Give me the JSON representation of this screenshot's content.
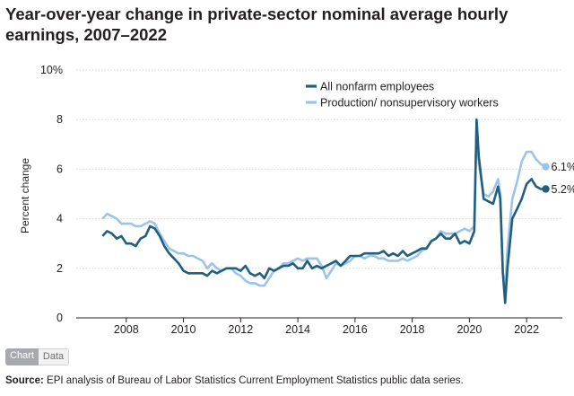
{
  "title": "Year-over-year change in private-sector nominal average hourly earnings, 2007–2022",
  "toggle": {
    "chart_label": "Chart",
    "data_label": "Data"
  },
  "source": {
    "label": "Source:",
    "text": "EPI analysis of Bureau of Labor Statistics Current Employment Statistics public data series."
  },
  "colors": {
    "series_all": "#1f5f7f",
    "series_prod": "#9dc3e6",
    "grid": "#d6d6d6",
    "text": "#231f20"
  },
  "chart_data": {
    "type": "line",
    "title": "Year-over-year change in private-sector nominal average hourly earnings, 2007–2022",
    "xlabel": "",
    "ylabel": "Percent change",
    "xlim": [
      2006.25,
      2023.25
    ],
    "ylim": [
      0,
      10
    ],
    "xticks": [
      2008,
      2010,
      2012,
      2014,
      2016,
      2018,
      2020,
      2022
    ],
    "yticks": [
      0,
      2,
      4,
      6,
      8,
      10
    ],
    "ytick_labels": [
      "0",
      "2",
      "4",
      "6",
      "8",
      "10%"
    ],
    "grid": "horizontal",
    "legend": "top-right",
    "series": [
      {
        "name": "All nonfarm employees",
        "color": "#1f5f7f",
        "end_label": "5.2%",
        "points": [
          [
            2007.17,
            3.3
          ],
          [
            2007.33,
            3.5
          ],
          [
            2007.5,
            3.4
          ],
          [
            2007.67,
            3.2
          ],
          [
            2007.83,
            3.3
          ],
          [
            2008.0,
            3.0
          ],
          [
            2008.17,
            3.0
          ],
          [
            2008.33,
            2.9
          ],
          [
            2008.5,
            3.2
          ],
          [
            2008.67,
            3.3
          ],
          [
            2008.83,
            3.7
          ],
          [
            2009.0,
            3.6
          ],
          [
            2009.17,
            3.3
          ],
          [
            2009.33,
            2.9
          ],
          [
            2009.5,
            2.6
          ],
          [
            2009.67,
            2.4
          ],
          [
            2009.83,
            2.2
          ],
          [
            2010.0,
            1.9
          ],
          [
            2010.17,
            1.8
          ],
          [
            2010.33,
            1.8
          ],
          [
            2010.5,
            1.8
          ],
          [
            2010.67,
            1.8
          ],
          [
            2010.83,
            1.7
          ],
          [
            2011.0,
            1.9
          ],
          [
            2011.17,
            1.8
          ],
          [
            2011.33,
            1.9
          ],
          [
            2011.5,
            2.0
          ],
          [
            2011.67,
            2.0
          ],
          [
            2011.83,
            2.0
          ],
          [
            2012.0,
            1.9
          ],
          [
            2012.17,
            2.1
          ],
          [
            2012.33,
            1.8
          ],
          [
            2012.5,
            1.7
          ],
          [
            2012.67,
            1.8
          ],
          [
            2012.83,
            1.6
          ],
          [
            2013.0,
            2.0
          ],
          [
            2013.17,
            1.9
          ],
          [
            2013.33,
            2.0
          ],
          [
            2013.5,
            2.1
          ],
          [
            2013.67,
            2.1
          ],
          [
            2013.83,
            2.2
          ],
          [
            2014.0,
            2.0
          ],
          [
            2014.17,
            2.0
          ],
          [
            2014.33,
            2.3
          ],
          [
            2014.5,
            2.0
          ],
          [
            2014.67,
            2.1
          ],
          [
            2014.83,
            2.0
          ],
          [
            2015.0,
            2.1
          ],
          [
            2015.17,
            2.2
          ],
          [
            2015.33,
            2.3
          ],
          [
            2015.5,
            2.1
          ],
          [
            2015.67,
            2.3
          ],
          [
            2015.83,
            2.5
          ],
          [
            2016.0,
            2.5
          ],
          [
            2016.17,
            2.5
          ],
          [
            2016.33,
            2.6
          ],
          [
            2016.5,
            2.6
          ],
          [
            2016.67,
            2.6
          ],
          [
            2016.83,
            2.6
          ],
          [
            2017.0,
            2.7
          ],
          [
            2017.17,
            2.5
          ],
          [
            2017.33,
            2.6
          ],
          [
            2017.5,
            2.5
          ],
          [
            2017.67,
            2.7
          ],
          [
            2017.83,
            2.5
          ],
          [
            2018.0,
            2.6
          ],
          [
            2018.17,
            2.7
          ],
          [
            2018.33,
            2.8
          ],
          [
            2018.5,
            2.8
          ],
          [
            2018.67,
            3.1
          ],
          [
            2018.83,
            3.2
          ],
          [
            2019.0,
            3.4
          ],
          [
            2019.17,
            3.2
          ],
          [
            2019.33,
            3.2
          ],
          [
            2019.5,
            3.4
          ],
          [
            2019.67,
            3.0
          ],
          [
            2019.83,
            3.1
          ],
          [
            2020.0,
            3.0
          ],
          [
            2020.17,
            3.5
          ],
          [
            2020.25,
            8.0
          ],
          [
            2020.33,
            6.5
          ],
          [
            2020.5,
            4.8
          ],
          [
            2020.67,
            4.7
          ],
          [
            2020.83,
            4.6
          ],
          [
            2021.0,
            5.3
          ],
          [
            2021.08,
            4.8
          ],
          [
            2021.17,
            1.8
          ],
          [
            2021.25,
            0.6
          ],
          [
            2021.33,
            2.0
          ],
          [
            2021.5,
            4.0
          ],
          [
            2021.67,
            4.4
          ],
          [
            2021.83,
            4.8
          ],
          [
            2022.0,
            5.4
          ],
          [
            2022.17,
            5.6
          ],
          [
            2022.33,
            5.3
          ],
          [
            2022.5,
            5.2
          ],
          [
            2022.67,
            5.2
          ]
        ]
      },
      {
        "name": "Production/ nonsupervisory workers",
        "color": "#9dc3e6",
        "end_label": "6.1%",
        "points": [
          [
            2007.17,
            4.0
          ],
          [
            2007.33,
            4.2
          ],
          [
            2007.5,
            4.1
          ],
          [
            2007.67,
            4.0
          ],
          [
            2007.83,
            3.8
          ],
          [
            2008.0,
            3.8
          ],
          [
            2008.17,
            3.8
          ],
          [
            2008.33,
            3.7
          ],
          [
            2008.5,
            3.7
          ],
          [
            2008.67,
            3.8
          ],
          [
            2008.83,
            3.9
          ],
          [
            2009.0,
            3.8
          ],
          [
            2009.17,
            3.4
          ],
          [
            2009.33,
            3.1
          ],
          [
            2009.5,
            2.8
          ],
          [
            2009.67,
            2.7
          ],
          [
            2009.83,
            2.6
          ],
          [
            2010.0,
            2.6
          ],
          [
            2010.17,
            2.5
          ],
          [
            2010.33,
            2.5
          ],
          [
            2010.5,
            2.4
          ],
          [
            2010.67,
            2.3
          ],
          [
            2010.83,
            2.0
          ],
          [
            2011.0,
            2.2
          ],
          [
            2011.17,
            2.0
          ],
          [
            2011.33,
            1.9
          ],
          [
            2011.5,
            2.0
          ],
          [
            2011.67,
            2.0
          ],
          [
            2011.83,
            1.8
          ],
          [
            2012.0,
            1.7
          ],
          [
            2012.17,
            1.5
          ],
          [
            2012.33,
            1.4
          ],
          [
            2012.5,
            1.4
          ],
          [
            2012.67,
            1.3
          ],
          [
            2012.83,
            1.3
          ],
          [
            2013.0,
            1.6
          ],
          [
            2013.17,
            1.9
          ],
          [
            2013.33,
            2.0
          ],
          [
            2013.5,
            2.2
          ],
          [
            2013.67,
            2.2
          ],
          [
            2013.83,
            2.3
          ],
          [
            2014.0,
            2.4
          ],
          [
            2014.17,
            2.3
          ],
          [
            2014.33,
            2.4
          ],
          [
            2014.5,
            2.4
          ],
          [
            2014.67,
            2.4
          ],
          [
            2014.83,
            2.1
          ],
          [
            2015.0,
            1.6
          ],
          [
            2015.17,
            1.9
          ],
          [
            2015.33,
            2.2
          ],
          [
            2015.5,
            2.1
          ],
          [
            2015.67,
            2.2
          ],
          [
            2015.83,
            2.3
          ],
          [
            2016.0,
            2.5
          ],
          [
            2016.17,
            2.5
          ],
          [
            2016.33,
            2.4
          ],
          [
            2016.5,
            2.5
          ],
          [
            2016.67,
            2.5
          ],
          [
            2016.83,
            2.4
          ],
          [
            2017.0,
            2.4
          ],
          [
            2017.17,
            2.3
          ],
          [
            2017.33,
            2.3
          ],
          [
            2017.5,
            2.3
          ],
          [
            2017.67,
            2.4
          ],
          [
            2017.83,
            2.3
          ],
          [
            2018.0,
            2.4
          ],
          [
            2018.17,
            2.5
          ],
          [
            2018.33,
            2.7
          ],
          [
            2018.5,
            2.8
          ],
          [
            2018.67,
            3.1
          ],
          [
            2018.83,
            3.2
          ],
          [
            2019.0,
            3.5
          ],
          [
            2019.17,
            3.4
          ],
          [
            2019.33,
            3.4
          ],
          [
            2019.5,
            3.4
          ],
          [
            2019.67,
            3.5
          ],
          [
            2019.83,
            3.6
          ],
          [
            2020.0,
            3.5
          ],
          [
            2020.17,
            3.7
          ],
          [
            2020.25,
            7.8
          ],
          [
            2020.33,
            6.2
          ],
          [
            2020.5,
            5.0
          ],
          [
            2020.67,
            4.9
          ],
          [
            2020.83,
            5.1
          ],
          [
            2021.0,
            5.6
          ],
          [
            2021.08,
            5.0
          ],
          [
            2021.17,
            1.8
          ],
          [
            2021.25,
            1.2
          ],
          [
            2021.33,
            2.8
          ],
          [
            2021.5,
            4.8
          ],
          [
            2021.67,
            5.5
          ],
          [
            2021.83,
            6.3
          ],
          [
            2022.0,
            6.7
          ],
          [
            2022.17,
            6.7
          ],
          [
            2022.33,
            6.4
          ],
          [
            2022.5,
            6.2
          ],
          [
            2022.67,
            6.1
          ]
        ]
      }
    ]
  }
}
